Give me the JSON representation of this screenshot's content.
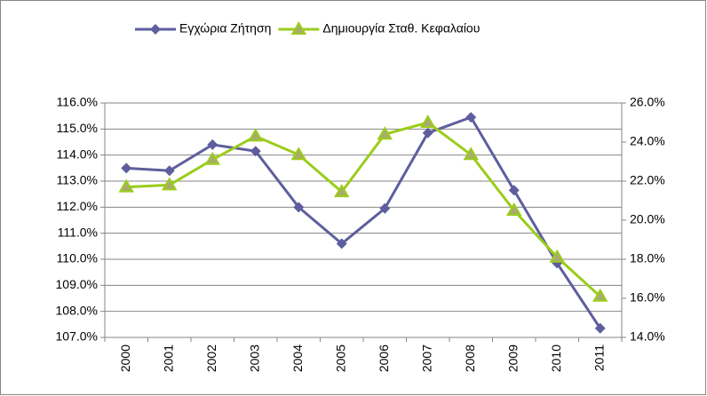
{
  "chart_data": {
    "type": "line",
    "categories": [
      "2000",
      "2001",
      "2002",
      "2003",
      "2004",
      "2005",
      "2006",
      "2007",
      "2008",
      "2009",
      "2010",
      "2011"
    ],
    "series": [
      {
        "name": "Εγχώρια Ζήτηση",
        "color": "#5e5e9e",
        "marker": "diamond",
        "axis": "y",
        "values": [
          113.5,
          113.4,
          114.4,
          114.15,
          112.0,
          110.6,
          111.95,
          114.85,
          115.45,
          112.65,
          109.85,
          107.35
        ]
      },
      {
        "name": "Δημιουργία Σταθ. Κεφαλαίου",
        "color": "#9acd1a",
        "marker": "triangle",
        "axis": "y2",
        "values": [
          21.7,
          21.8,
          23.1,
          24.3,
          23.35,
          21.45,
          24.4,
          25.0,
          23.35,
          20.5,
          18.1,
          16.1
        ]
      }
    ],
    "ylim": [
      107,
      116
    ],
    "yticks": [
      {
        "value": 107,
        "label": "107.0%"
      },
      {
        "value": 108,
        "label": "108.0%"
      },
      {
        "value": 109,
        "label": "109.0%"
      },
      {
        "value": 110,
        "label": "110.0%"
      },
      {
        "value": 111,
        "label": "111.0%"
      },
      {
        "value": 112,
        "label": "112.0%"
      },
      {
        "value": 113,
        "label": "113.0%"
      },
      {
        "value": 114,
        "label": "114.0%"
      },
      {
        "value": 115,
        "label": "115.0%"
      },
      {
        "value": 116,
        "label": "116.0%"
      }
    ],
    "y2lim": [
      14,
      26
    ],
    "y2ticks": [
      {
        "value": 14,
        "label": "14.0%"
      },
      {
        "value": 16,
        "label": "16.0%"
      },
      {
        "value": 18,
        "label": "18.0%"
      },
      {
        "value": 20,
        "label": "20.0%"
      },
      {
        "value": 22,
        "label": "22.0%"
      },
      {
        "value": 24,
        "label": "24.0%"
      },
      {
        "value": 26,
        "label": "26.0%"
      }
    ],
    "grid": true,
    "legend": "top"
  }
}
